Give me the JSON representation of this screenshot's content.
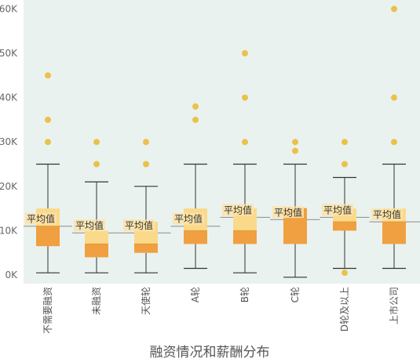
{
  "chart_data": {
    "type": "box",
    "title": "融资情况和薪酬分布",
    "y_ticks": [
      "0K",
      "10K",
      "20K",
      "30K",
      "40K",
      "50K",
      "60K"
    ],
    "ylim": [
      0,
      60000
    ],
    "grid": false,
    "mean_label": "平均值",
    "categories": [
      "不需要融资",
      "未融资",
      "天使轮",
      "A轮",
      "B轮",
      "C轮",
      "D轮及以上",
      "上市公司"
    ],
    "boxes": [
      {
        "min": 500,
        "q1": 6500,
        "median": 11000,
        "q3": 15000,
        "max": 25000,
        "mean": 11000,
        "outliers": [
          30000,
          35000,
          45000
        ]
      },
      {
        "min": 500,
        "q1": 4000,
        "median": 7000,
        "q3": 10000,
        "max": 21000,
        "mean": 9500,
        "outliers": [
          25000,
          30000
        ]
      },
      {
        "min": 500,
        "q1": 5000,
        "median": 7000,
        "q3": 12000,
        "max": 20000,
        "mean": 9500,
        "outliers": [
          25000,
          30000
        ]
      },
      {
        "min": 1500,
        "q1": 7000,
        "median": 10000,
        "q3": 15000,
        "max": 25000,
        "mean": 11000,
        "outliers": [
          35000,
          38000
        ]
      },
      {
        "min": 500,
        "q1": 7000,
        "median": 10000,
        "q3": 15000,
        "max": 25000,
        "mean": 13000,
        "outliers": [
          30000,
          40000,
          50000
        ]
      },
      {
        "min": -500,
        "q1": 7000,
        "median": 15000,
        "q3": 15000,
        "max": 25000,
        "mean": 12500,
        "outliers": [
          28000,
          30000
        ]
      },
      {
        "min": 1500,
        "q1": 10000,
        "median": 12000,
        "q3": 15000,
        "max": 22000,
        "mean": 13000,
        "outliers": [
          500,
          25000,
          30000
        ]
      },
      {
        "min": 1500,
        "q1": 7000,
        "median": 12000,
        "q3": 15000,
        "max": 25000,
        "mean": 12000,
        "outliers": [
          30000,
          40000,
          60000
        ]
      }
    ],
    "colors": {
      "background": "#eaf2ef",
      "box_lower": "#f0a040",
      "box_upper": "#fbd98a",
      "whisker": "#333333",
      "outlier": "#eac24a",
      "mean_line": "#8a8a8a",
      "mean_label_bg": "#fbe3a8"
    }
  }
}
